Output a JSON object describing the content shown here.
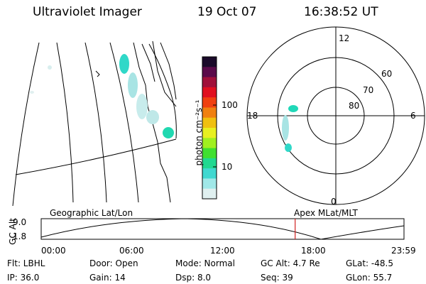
{
  "header": {
    "instrument": "Ultraviolet Imager",
    "date": "19 Oct 07",
    "time": "16:38:52 UT"
  },
  "colorbar": {
    "label": "photon cm⁻²s⁻¹",
    "ticks": [
      "100",
      "10"
    ],
    "colors": [
      "#1a0a2a",
      "#5a0a4a",
      "#a0103a",
      "#e01020",
      "#f04010",
      "#f08010",
      "#f0c010",
      "#e8f020",
      "#a0f020",
      "#40e030",
      "#20d890",
      "#40d8d0",
      "#a0e8e8",
      "#e0f0f0"
    ]
  },
  "polar": {
    "hour_labels": [
      "12",
      "18",
      "6",
      "0"
    ],
    "lat_labels": [
      "60",
      "70",
      "80"
    ]
  },
  "orbit_plot": {
    "left_title": "Geographic Lat/Lon",
    "right_title": "Apex MLat/MLT",
    "axis_label": "GC Alt",
    "y_ticks": [
      "9.0",
      "1.8"
    ],
    "x_ticks": [
      "00:00",
      "06:00",
      "12:00",
      "18:00",
      "23:59"
    ],
    "current_time_fraction": 0.7
  },
  "info": {
    "filter": "Flt: LBHL",
    "ip": "IP: 36.0",
    "door": "Door: Open",
    "gain": "Gain: 14",
    "mode": "Mode: Normal",
    "dsp": "Dsp:     8.0",
    "gcalt": "GC Alt: 4.7 Re",
    "seq": "Seq: 39",
    "glat": "GLat: -48.5",
    "glon": "GLon:  55.7"
  }
}
